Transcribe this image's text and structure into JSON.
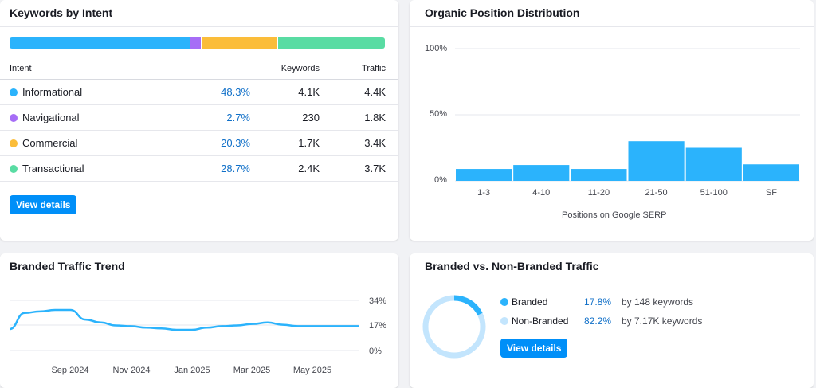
{
  "keywords_by_intent": {
    "title": "Keywords by Intent",
    "headers": {
      "intent": "Intent",
      "keywords": "Keywords",
      "traffic": "Traffic"
    },
    "rows": [
      {
        "name": "Informational",
        "percent": "48.3%",
        "keywords": "4.1K",
        "traffic": "4.4K",
        "color": "#2bb3fc",
        "share": 48.3
      },
      {
        "name": "Navigational",
        "percent": "2.7%",
        "keywords": "230",
        "traffic": "1.8K",
        "color": "#a66df6",
        "share": 2.7
      },
      {
        "name": "Commercial",
        "percent": "20.3%",
        "keywords": "1.7K",
        "traffic": "3.4K",
        "color": "#fbbd3a",
        "share": 20.3
      },
      {
        "name": "Transactional",
        "percent": "28.7%",
        "keywords": "2.4K",
        "traffic": "3.7K",
        "color": "#59dca3",
        "share": 28.7
      }
    ],
    "button_label": "View details"
  },
  "organic_position": {
    "title": "Organic Position Distribution",
    "xlabel": "Positions on Google SERP",
    "chart_data": {
      "type": "bar",
      "categories": [
        "1-3",
        "4-10",
        "11-20",
        "21-50",
        "51-100",
        "SF"
      ],
      "values": [
        9,
        12,
        9,
        30,
        25,
        12.5
      ],
      "ylim": [
        0,
        100
      ],
      "yticks": [
        "100%",
        "50%",
        "0%"
      ],
      "xlabel": "Positions on Google SERP",
      "color": "#2bb3fc",
      "grid": true
    }
  },
  "branded_trend": {
    "title": "Branded Traffic Trend",
    "chart_data": {
      "type": "line",
      "x": [
        "2024-07",
        "2024-07",
        "2024-08",
        "2024-08",
        "2024-09",
        "2024-09",
        "2024-10",
        "2024-10",
        "2024-11",
        "2024-11",
        "2024-12",
        "2024-12",
        "2025-01",
        "2025-01",
        "2025-02",
        "2025-02",
        "2025-03",
        "2025-03",
        "2025-04",
        "2025-04",
        "2025-05",
        "2025-05",
        "2025-06",
        "2025-06"
      ],
      "values": [
        14.5,
        25.5,
        26.5,
        27.5,
        27.5,
        21,
        19,
        17,
        16.5,
        15.5,
        15,
        14,
        14,
        15.5,
        16.5,
        17,
        18,
        19,
        17.5,
        16.5,
        16.5,
        16.5,
        16.5,
        16.5
      ],
      "ylim": [
        0,
        34
      ],
      "yticks": [
        "34%",
        "17%",
        "0%"
      ],
      "xticks": [
        "Sep 2024",
        "Nov 2024",
        "Jan 2025",
        "Mar 2025",
        "May 2025"
      ],
      "color": "#2bb3fc",
      "grid": true
    }
  },
  "branded_vs_non": {
    "title": "Branded vs. Non-Branded Traffic",
    "chart_data": {
      "type": "pie",
      "series": [
        {
          "name": "Branded",
          "value": 17.8,
          "color": "#2bb3fc"
        },
        {
          "name": "Non-Branded",
          "value": 82.2,
          "color": "#c3e5fd"
        }
      ]
    },
    "legend": [
      {
        "name": "Branded",
        "percent": "17.8%",
        "detail": "by 148 keywords",
        "color": "#2bb3fc"
      },
      {
        "name": "Non-Branded",
        "percent": "82.2%",
        "detail": "by 7.17K keywords",
        "color": "#c3e5fd"
      }
    ],
    "button_label": "View details"
  }
}
